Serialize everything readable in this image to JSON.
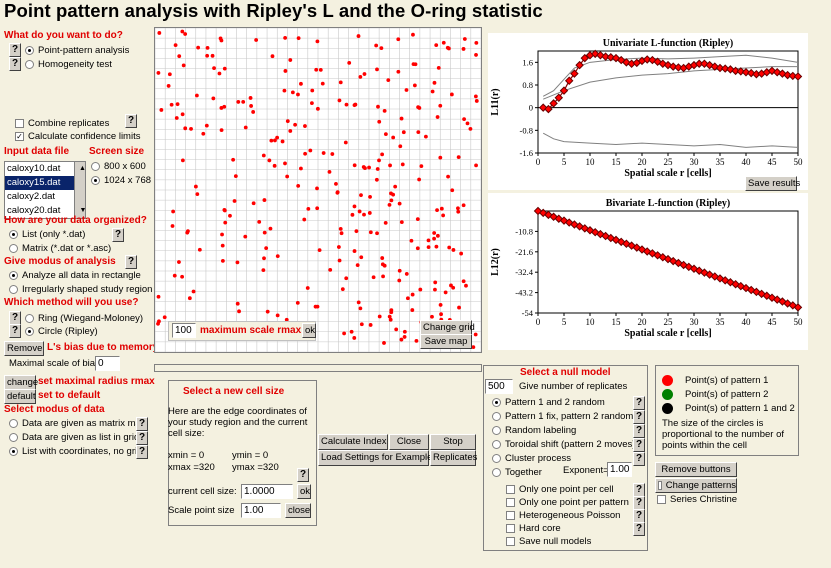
{
  "title": "Point pattern analysis with Ripley's L and the O-ring statistic",
  "what_to_do": {
    "heading": "What do you want to do?",
    "options": [
      "Point-pattern analysis",
      "Homogeneity test"
    ],
    "selected": 0
  },
  "replicates": {
    "combine": "Combine replicates",
    "confidence": "Calculate confidence limits",
    "confidence_checked": true
  },
  "input_file": {
    "heading": "Input data file",
    "files": [
      "caloxy10.dat",
      "caloxy15.dat",
      "caloxy2.dat",
      "caloxy20.dat"
    ],
    "selected": 1
  },
  "screen_size": {
    "heading": "Screen size",
    "options": [
      "800 x 600",
      "1024 x 768"
    ],
    "selected": 1
  },
  "organized": {
    "heading": "How are your data organized?",
    "options": [
      "List  (only *.dat)",
      "Matrix (*.dat or *.asc)"
    ],
    "selected": 0
  },
  "modus": {
    "heading": "Give modus of analysis",
    "options": [
      "Analyze all data in rectangle",
      "Irregularly shaped study region"
    ],
    "selected": 0
  },
  "method": {
    "heading": "Which method will you use?",
    "options": [
      "Ring (Wiegand-Moloney)",
      "Circle (Ripley)"
    ],
    "selected": 1
  },
  "bias": {
    "remove_label": "Remove",
    "heading": "L's bias due to memory",
    "max_scale_label": "Maximal scale of bias:",
    "max_scale_value": "0"
  },
  "rmax": {
    "change_label": "change",
    "change_text": "set maximal radius rmax",
    "default_label": "default",
    "default_text": "set to default"
  },
  "data_modus": {
    "heading": "Select modus of data",
    "options": [
      "Data are given as matrix map",
      "Data are given as list in grid",
      "List with coordinates, no grid"
    ],
    "selected": 2
  },
  "map": {
    "scale_value": "100",
    "scale_label": "maximum scale rmax",
    "ok": "ok",
    "change_grid": "Change grid",
    "save_map": "Save map"
  },
  "chart_data": [
    {
      "type": "line",
      "title": "Univariate L-function (Ripley)",
      "xlabel": "Spatial scale r [cells]",
      "ylabel": "L11(r)",
      "xlim": [
        0,
        50
      ],
      "ylim": [
        -1.6,
        2
      ],
      "xticks": [
        0,
        5,
        10,
        15,
        20,
        25,
        30,
        35,
        40,
        45,
        50
      ],
      "yticks": [
        "1.6",
        "0.8",
        "0",
        "-0.8",
        "-1.6"
      ],
      "series": [
        {
          "values": [
            [
              1,
              0
            ],
            [
              2,
              -0.05
            ],
            [
              3,
              0.15
            ],
            [
              4,
              0.35
            ],
            [
              5,
              0.6
            ],
            [
              6,
              0.95
            ],
            [
              7,
              1.2
            ],
            [
              8,
              1.5
            ],
            [
              9,
              1.75
            ],
            [
              10,
              1.85
            ],
            [
              11,
              1.9
            ],
            [
              12,
              1.85
            ],
            [
              13,
              1.8
            ],
            [
              14,
              1.78
            ],
            [
              15,
              1.75
            ],
            [
              16,
              1.68
            ],
            [
              17,
              1.6
            ],
            [
              18,
              1.55
            ],
            [
              19,
              1.58
            ],
            [
              20,
              1.65
            ],
            [
              21,
              1.7
            ],
            [
              22,
              1.68
            ],
            [
              23,
              1.62
            ],
            [
              24,
              1.55
            ],
            [
              25,
              1.5
            ],
            [
              26,
              1.45
            ],
            [
              27,
              1.42
            ],
            [
              28,
              1.4
            ],
            [
              29,
              1.45
            ],
            [
              30,
              1.5
            ],
            [
              31,
              1.55
            ],
            [
              32,
              1.55
            ],
            [
              33,
              1.5
            ],
            [
              34,
              1.45
            ],
            [
              35,
              1.4
            ],
            [
              36,
              1.38
            ],
            [
              37,
              1.35
            ],
            [
              38,
              1.3
            ],
            [
              39,
              1.28
            ],
            [
              40,
              1.25
            ],
            [
              41,
              1.22
            ],
            [
              42,
              1.18
            ],
            [
              43,
              1.2
            ],
            [
              44,
              1.25
            ],
            [
              45,
              1.3
            ],
            [
              46,
              1.25
            ],
            [
              47,
              1.2
            ],
            [
              48,
              1.15
            ],
            [
              49,
              1.12
            ],
            [
              50,
              1.1
            ]
          ]
        },
        {
          "values": [
            [
              1,
              0.4
            ],
            [
              3,
              0.6
            ],
            [
              5,
              1.0
            ],
            [
              7,
              1.4
            ],
            [
              10,
              1.6
            ],
            [
              15,
              1.7
            ],
            [
              20,
              1.75
            ],
            [
              25,
              1.72
            ],
            [
              30,
              1.75
            ],
            [
              35,
              1.8
            ],
            [
              40,
              1.85
            ],
            [
              45,
              1.75
            ],
            [
              50,
              1.6
            ]
          ]
        },
        {
          "values": [
            [
              1,
              -0.9
            ],
            [
              3,
              -1.1
            ],
            [
              5,
              -1.2
            ],
            [
              10,
              -1.25
            ],
            [
              15,
              -1.3
            ],
            [
              20,
              -1.25
            ],
            [
              25,
              -1.3
            ],
            [
              30,
              -1.35
            ],
            [
              35,
              -1.3
            ],
            [
              40,
              -1.4
            ],
            [
              45,
              -1.35
            ],
            [
              50,
              -1.4
            ]
          ]
        },
        {
          "values": [
            [
              1,
              0.3
            ],
            [
              5,
              0.6
            ],
            [
              10,
              0.9
            ],
            [
              15,
              1.05
            ],
            [
              20,
              1.15
            ],
            [
              25,
              1.2
            ],
            [
              30,
              1.3
            ],
            [
              35,
              1.35
            ],
            [
              40,
              1.4
            ],
            [
              45,
              1.45
            ],
            [
              50,
              1.45
            ]
          ]
        }
      ]
    },
    {
      "type": "line",
      "title": "Bivariate L-function (Ripley)",
      "xlabel": "Spatial scale r [cells]",
      "ylabel": "L12(r)",
      "xlim": [
        0,
        50
      ],
      "ylim": [
        -54,
        0
      ],
      "xticks": [
        0,
        5,
        10,
        15,
        20,
        25,
        30,
        35,
        40,
        45,
        50
      ],
      "yticks": [
        "-10.8",
        "-21.6",
        "-32.4",
        "-43.2",
        "-54"
      ],
      "series": [
        {
          "values": [
            [
              0,
              0
            ],
            [
              50,
              -51
            ]
          ]
        }
      ]
    }
  ],
  "save_results": "Save results",
  "cell_size": {
    "heading": "Select a new cell size",
    "desc": "Here are the edge coordinates of your study region and the current cell size:",
    "xmin": "xmin = 0",
    "ymin": "ymin = 0",
    "xmax": "xmax =320",
    "ymax": "ymax =320",
    "current_label": "current cell size:",
    "current_value": "1.0000",
    "ok": "ok",
    "scale_label": "Scale point size",
    "scale_value": "1.00",
    "close": "close"
  },
  "actions": {
    "calc": "Calculate Index",
    "close": "Close",
    "stop": "Stop",
    "load": "Load Settings for Example",
    "replicates": "Replicates"
  },
  "null_model": {
    "heading": "Select a null model",
    "replicates_value": "500",
    "replicates_label": "Give number of replicates",
    "options": [
      "Pattern 1 and 2 random",
      "Pattern 1 fix, pattern 2 random",
      "Random labeling",
      "Toroidal shift (pattern 2 moves)",
      "Cluster process",
      "Together"
    ],
    "selected": 0,
    "exponent_label": "Exponent=",
    "exponent_value": "1.00",
    "checks": [
      "Only one point per cell",
      "Only one point per pattern",
      "Heterogeneous Poisson",
      "Hard core",
      "Save null models"
    ]
  },
  "legend": {
    "items": [
      "Point(s) of pattern 1",
      "Point(s) of pattern 2",
      "Point(s) of pattern 1 and 2"
    ],
    "colors": [
      "#ff0000",
      "#008000",
      "#000000"
    ],
    "note": "The size of the circles is proportional to the number of points within the cell"
  },
  "buttons": {
    "remove": "Remove buttons",
    "change_patterns": "Change patterns",
    "series": "Series Christine"
  }
}
